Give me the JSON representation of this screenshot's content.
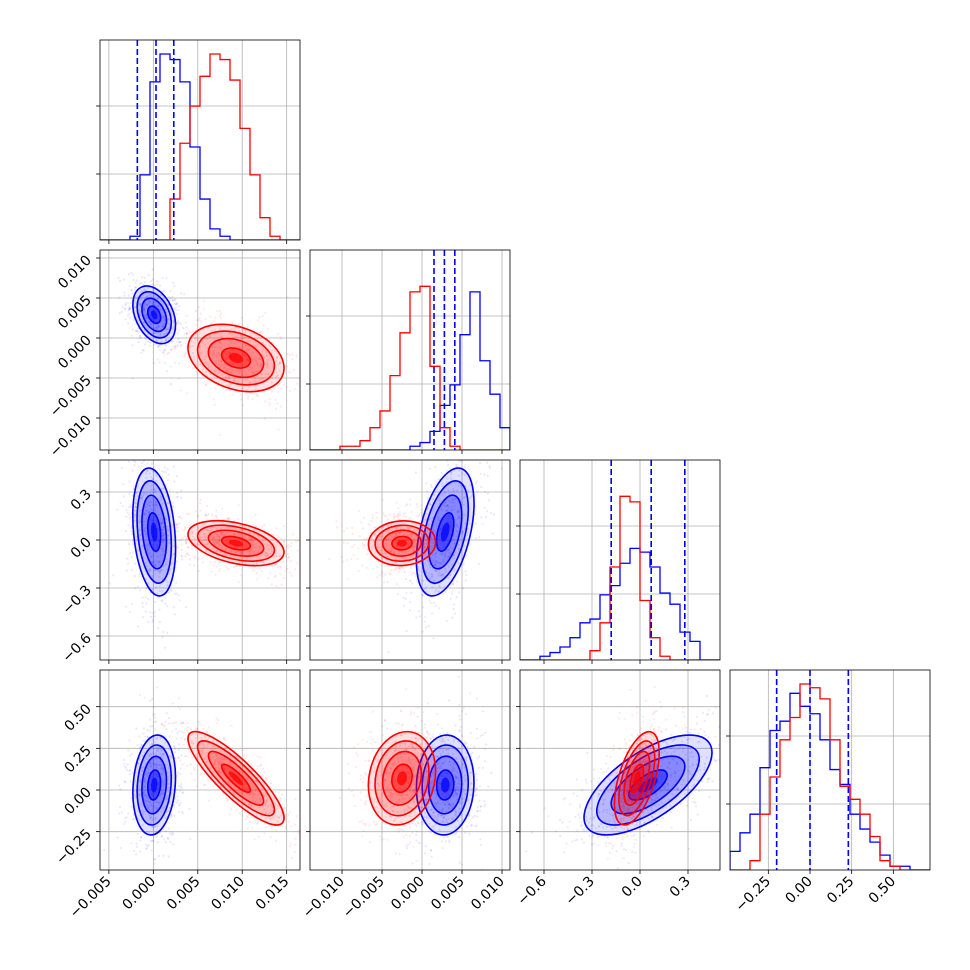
{
  "chart_data": {
    "type": "corner",
    "grid": true,
    "legend": "none",
    "colors": {
      "series_a": "#0000ff",
      "series_b": "#ff0000",
      "grid": "#b0b0b0",
      "axis": "#000000"
    },
    "parameters": [
      {
        "range": [
          -0.006,
          0.0165
        ],
        "ticks": [
          "−0.005",
          "0.000",
          "0.005",
          "0.010",
          "0.015"
        ],
        "tick_values": [
          -0.005,
          0.0,
          0.005,
          0.01,
          0.015
        ]
      },
      {
        "range": [
          -0.014,
          0.011
        ],
        "ticks": [
          "−0.010",
          "−0.005",
          "0.000",
          "0.005",
          "0.010"
        ],
        "tick_values": [
          -0.01,
          -0.005,
          0.0,
          0.005,
          0.01
        ]
      },
      {
        "range": [
          -0.75,
          0.5
        ],
        "ticks": [
          "−0.6",
          "−0.3",
          "0.0",
          "0.3"
        ],
        "tick_values": [
          -0.6,
          -0.3,
          0.0,
          0.3
        ]
      },
      {
        "range": [
          -0.48,
          0.72
        ],
        "ticks": [
          "−0.25",
          "0.00",
          "0.25",
          "0.50"
        ],
        "tick_values": [
          -0.25,
          0.0,
          0.25,
          0.5
        ]
      }
    ],
    "quantiles_series_a": [
      [
        -0.0018,
        0.0003,
        0.0023
      ],
      [
        0.0015,
        0.0028,
        0.0041
      ],
      [
        -0.18,
        0.07,
        0.28
      ],
      [
        -0.2,
        0.0,
        0.23
      ]
    ],
    "series": [
      {
        "color": "#0000ff",
        "mean": [
          0.0001,
          0.0029,
          0.05,
          0.03
        ],
        "std": [
          0.0012,
          0.0018,
          0.2,
          0.15
        ],
        "marginal_counts": [
          [
            0,
            0,
            0,
            0.02,
            0.35,
            0.85,
            1.0,
            0.97,
            0.85,
            0.5,
            0.22,
            0.06,
            0.02,
            0,
            0,
            0,
            0,
            0,
            0,
            0
          ],
          [
            0,
            0,
            0,
            0,
            0,
            0,
            0,
            0,
            0,
            0,
            0.02,
            0.04,
            0.1,
            0.24,
            0.35,
            0.62,
            0.85,
            0.48,
            0.3,
            0.12
          ],
          [
            0,
            0,
            0.02,
            0.04,
            0.07,
            0.12,
            0.2,
            0.22,
            0.35,
            0.4,
            0.52,
            0.6,
            0.58,
            0.5,
            0.36,
            0.3,
            0.15,
            0.1,
            0,
            0
          ],
          [
            0.1,
            0.2,
            0.3,
            0.55,
            0.75,
            0.8,
            0.95,
            0.88,
            0.84,
            0.7,
            0.54,
            0.46,
            0.3,
            0.22,
            0.15,
            0.08,
            0.02,
            0.02,
            0,
            0
          ]
        ]
      },
      {
        "color": "#ff0000",
        "mean": [
          0.0093,
          -0.0025,
          -0.02,
          0.07
        ],
        "std": [
          0.0027,
          0.0021,
          0.07,
          0.14
        ],
        "marginal_counts": [
          [
            0,
            0,
            0,
            0,
            0,
            0,
            0,
            0.22,
            0.52,
            0.72,
            0.88,
            1.0,
            0.97,
            0.86,
            0.6,
            0.35,
            0.12,
            0.02,
            0,
            0
          ],
          [
            0,
            0,
            0,
            0.02,
            0.02,
            0.05,
            0.12,
            0.21,
            0.4,
            0.63,
            0.85,
            0.88,
            0.45,
            0.12,
            0.02,
            0,
            0,
            0,
            0,
            0
          ],
          [
            0,
            0,
            0,
            0,
            0,
            0,
            0,
            0.05,
            0.2,
            0.5,
            0.88,
            0.85,
            0.32,
            0.12,
            0.02,
            0,
            0,
            0,
            0,
            0
          ],
          [
            0,
            0,
            0.05,
            0.3,
            0.5,
            0.7,
            0.82,
            1.0,
            0.98,
            0.92,
            0.7,
            0.45,
            0.38,
            0.3,
            0.18,
            0.05,
            0.02,
            0,
            0,
            0
          ]
        ]
      }
    ],
    "correlations": {
      "series_a": {
        "1_0": -0.35,
        "2_0": -0.25,
        "2_1": 0.45,
        "3_0": 0.15,
        "3_1": 0.05,
        "3_2": 0.65
      },
      "series_b": {
        "1_0": -0.3,
        "2_0": -0.4,
        "2_1": 0.05,
        "3_0": -0.85,
        "3_1": 0.15,
        "3_2": 0.55
      }
    }
  }
}
